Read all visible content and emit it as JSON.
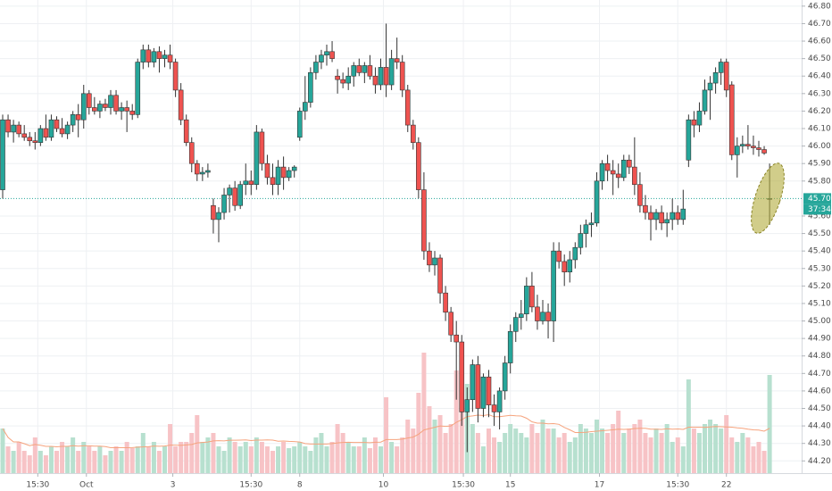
{
  "chart_data": {
    "type": "candlestick",
    "open": [
      45.75,
      46.15,
      46.08,
      46.12,
      46.07,
      46.05,
      46.03,
      46.02,
      46.1,
      46.05,
      46.15,
      46.1,
      46.07,
      46.12,
      46.18,
      46.15,
      46.3,
      46.22,
      46.2,
      46.24,
      46.22,
      46.29,
      46.2,
      46.22,
      46.2,
      46.18,
      46.48,
      46.55,
      46.48,
      46.54,
      46.5,
      46.52,
      46.48,
      46.32,
      46.15,
      46.02,
      45.9,
      45.84,
      45.85,
      45.66,
      45.58,
      45.62,
      45.72,
      45.76,
      45.66,
      45.78,
      45.8,
      45.78,
      46.08,
      45.9,
      45.82,
      45.78,
      45.88,
      45.82,
      45.86,
      46.05,
      46.2,
      46.25,
      46.42,
      46.48,
      46.52,
      46.54,
      46.4,
      46.38,
      46.36,
      46.4,
      46.46,
      46.42,
      46.46,
      46.4,
      46.35,
      46.45,
      46.35,
      46.5,
      46.48,
      46.32,
      46.12,
      46.02,
      45.75,
      45.4,
      45.32,
      45.36,
      45.16,
      45.05,
      44.92,
      44.88,
      44.48,
      44.55,
      44.75,
      44.5,
      44.68,
      44.52,
      44.48,
      44.6,
      44.76,
      44.94,
      45.02,
      45.04,
      45.2,
      45.08,
      45.0,
      45.05,
      45.0,
      45.4,
      45.34,
      45.28,
      45.35,
      45.42,
      45.5,
      45.55,
      45.56,
      45.8,
      45.9,
      45.86,
      45.84,
      45.82,
      45.92,
      45.88,
      45.78,
      45.66,
      45.62,
      45.58,
      45.62,
      45.56,
      45.58,
      45.62,
      45.58,
      45.92,
      46.15,
      46.12,
      46.2,
      46.32,
      46.36,
      46.42,
      46.48,
      46.35,
      45.95,
      46.0,
      46.01,
      46.0,
      45.99,
      45.98,
      45.7
    ],
    "high": [
      46.18,
      46.18,
      46.15,
      46.14,
      46.12,
      46.08,
      46.08,
      46.12,
      46.18,
      46.18,
      46.17,
      46.16,
      46.14,
      46.2,
      46.24,
      46.35,
      46.32,
      46.28,
      46.26,
      46.27,
      46.32,
      46.32,
      46.25,
      46.26,
      46.24,
      46.5,
      46.58,
      46.58,
      46.56,
      46.57,
      46.55,
      46.58,
      46.5,
      46.36,
      46.18,
      46.05,
      45.92,
      45.88,
      45.9,
      45.7,
      45.65,
      45.76,
      45.78,
      45.8,
      45.8,
      45.9,
      45.86,
      46.12,
      46.1,
      45.95,
      45.9,
      45.92,
      45.94,
      45.88,
      45.89,
      46.22,
      46.4,
      46.45,
      46.52,
      46.55,
      46.58,
      46.6,
      46.44,
      46.42,
      46.45,
      46.48,
      46.5,
      46.48,
      46.52,
      46.45,
      46.5,
      46.7,
      46.55,
      46.62,
      46.52,
      46.35,
      46.15,
      46.05,
      45.85,
      45.45,
      45.4,
      45.38,
      45.2,
      45.08,
      45.0,
      44.92,
      44.62,
      44.78,
      44.8,
      44.7,
      44.72,
      44.58,
      44.62,
      44.8,
      44.98,
      45.05,
      45.12,
      45.25,
      45.28,
      45.15,
      45.12,
      45.1,
      45.45,
      45.45,
      45.38,
      45.4,
      45.45,
      45.55,
      45.58,
      45.62,
      45.85,
      45.92,
      45.95,
      45.92,
      45.9,
      45.95,
      45.95,
      46.05,
      45.85,
      45.72,
      45.66,
      45.64,
      45.66,
      45.62,
      45.7,
      45.66,
      45.75,
      46.18,
      46.2,
      46.25,
      46.38,
      46.4,
      46.45,
      46.5,
      46.5,
      46.37,
      46.05,
      46.06,
      46.12,
      46.06,
      46.03,
      46.0,
      45.9
    ],
    "low": [
      45.7,
      46.05,
      46.02,
      46.05,
      46.03,
      46.0,
      45.98,
      46.0,
      46.03,
      46.03,
      46.08,
      46.05,
      46.04,
      46.08,
      46.05,
      46.1,
      46.18,
      46.18,
      46.16,
      46.2,
      46.18,
      46.18,
      46.15,
      46.08,
      46.15,
      46.16,
      46.44,
      46.45,
      46.45,
      46.42,
      46.45,
      46.44,
      46.28,
      46.12,
      46.0,
      45.85,
      45.8,
      45.8,
      45.82,
      45.5,
      45.45,
      45.58,
      45.62,
      45.63,
      45.64,
      45.72,
      45.72,
      45.75,
      45.86,
      45.78,
      45.72,
      45.72,
      45.75,
      45.8,
      45.82,
      46.03,
      46.15,
      46.22,
      46.38,
      46.44,
      46.46,
      46.48,
      46.3,
      46.33,
      46.32,
      46.34,
      46.4,
      46.36,
      46.38,
      46.3,
      46.32,
      46.28,
      46.32,
      46.44,
      46.28,
      46.08,
      45.98,
      45.7,
      45.35,
      45.28,
      45.26,
      45.1,
      45.0,
      44.88,
      44.55,
      44.4,
      44.25,
      44.48,
      44.42,
      44.45,
      44.45,
      44.4,
      44.38,
      44.55,
      44.7,
      44.88,
      44.95,
      45.0,
      45.05,
      44.95,
      44.98,
      44.9,
      44.88,
      45.3,
      45.2,
      45.22,
      45.3,
      45.38,
      45.42,
      45.48,
      45.54,
      45.75,
      45.8,
      45.72,
      45.76,
      45.8,
      45.84,
      45.72,
      45.62,
      45.58,
      45.46,
      45.52,
      45.52,
      45.48,
      45.52,
      45.55,
      45.55,
      45.88,
      46.05,
      46.08,
      46.18,
      46.15,
      46.3,
      46.35,
      46.28,
      45.92,
      45.82,
      45.96,
      45.98,
      45.95,
      45.94,
      45.95,
      45.55
    ],
    "close": [
      46.15,
      46.08,
      46.12,
      46.07,
      46.05,
      46.03,
      46.02,
      46.1,
      46.05,
      46.15,
      46.1,
      46.07,
      46.12,
      46.18,
      46.15,
      46.3,
      46.22,
      46.2,
      46.24,
      46.22,
      46.29,
      46.2,
      46.22,
      46.2,
      46.18,
      46.48,
      46.55,
      46.48,
      46.54,
      46.5,
      46.52,
      46.48,
      46.32,
      46.15,
      46.02,
      45.9,
      45.84,
      45.85,
      45.86,
      45.58,
      45.62,
      45.72,
      45.76,
      45.66,
      45.78,
      45.8,
      45.78,
      46.08,
      45.9,
      45.82,
      45.78,
      45.88,
      45.82,
      45.86,
      45.88,
      46.2,
      46.25,
      46.42,
      46.48,
      46.52,
      46.54,
      46.5,
      46.38,
      46.36,
      46.4,
      46.46,
      46.42,
      46.46,
      46.4,
      46.35,
      46.45,
      46.35,
      46.5,
      46.48,
      46.32,
      46.12,
      46.02,
      45.75,
      45.4,
      45.32,
      45.36,
      45.16,
      45.05,
      44.92,
      44.88,
      44.48,
      44.55,
      44.75,
      44.5,
      44.68,
      44.52,
      44.48,
      44.6,
      44.76,
      44.94,
      45.02,
      45.04,
      45.2,
      45.08,
      45.0,
      45.05,
      45.0,
      45.4,
      45.34,
      45.28,
      45.35,
      45.42,
      45.5,
      45.55,
      45.56,
      45.8,
      45.9,
      45.86,
      45.84,
      45.82,
      45.92,
      45.88,
      45.78,
      45.66,
      45.62,
      45.58,
      45.62,
      45.56,
      45.58,
      45.62,
      45.58,
      45.64,
      46.15,
      46.12,
      46.2,
      46.32,
      46.36,
      46.42,
      46.48,
      46.32,
      45.95,
      46.0,
      46.01,
      46.0,
      45.99,
      45.98,
      45.96,
      45.7
    ],
    "volume": [
      50,
      30,
      25,
      35,
      25,
      20,
      40,
      25,
      20,
      30,
      25,
      35,
      30,
      40,
      25,
      35,
      30,
      25,
      30,
      20,
      25,
      30,
      25,
      35,
      28,
      30,
      45,
      30,
      35,
      25,
      30,
      55,
      30,
      35,
      35,
      45,
      65,
      35,
      40,
      45,
      30,
      25,
      40,
      35,
      30,
      35,
      30,
      40,
      35,
      30,
      25,
      30,
      35,
      28,
      30,
      35,
      30,
      25,
      40,
      45,
      30,
      35,
      55,
      45,
      35,
      30,
      30,
      40,
      28,
      40,
      30,
      85,
      35,
      30,
      40,
      60,
      50,
      90,
      135,
      75,
      60,
      65,
      45,
      55,
      115,
      90,
      100,
      55,
      45,
      30,
      50,
      40,
      35,
      45,
      55,
      50,
      45,
      40,
      55,
      45,
      60,
      50,
      50,
      40,
      45,
      35,
      40,
      55,
      50,
      45,
      60,
      50,
      45,
      55,
      70,
      45,
      50,
      55,
      60,
      45,
      40,
      50,
      45,
      55,
      35,
      40,
      30,
      105,
      50,
      45,
      55,
      60,
      55,
      50,
      65,
      40,
      35,
      45,
      40,
      30,
      35,
      25,
      110
    ],
    "ma_period": 20,
    "vlim": [
      0,
      530
    ],
    "ylim": [
      44.13,
      46.835
    ],
    "yticks": [
      {
        "value": 46.8,
        "label": "46.80"
      },
      {
        "value": 46.7,
        "label": "46.70"
      },
      {
        "value": 46.6,
        "label": "46.60"
      },
      {
        "value": 46.5,
        "label": "46.50"
      },
      {
        "value": 46.4,
        "label": "46.40"
      },
      {
        "value": 46.3,
        "label": "46.30"
      },
      {
        "value": 46.2,
        "label": "46.20"
      },
      {
        "value": 46.1,
        "label": "46.10"
      },
      {
        "value": 46.0,
        "label": "46.00"
      },
      {
        "value": 45.9,
        "label": "45.90"
      },
      {
        "value": 45.8,
        "label": "45.80"
      },
      {
        "value": 45.6,
        "label": "45.60"
      },
      {
        "value": 45.5,
        "label": "45.50"
      },
      {
        "value": 45.4,
        "label": "45.40"
      },
      {
        "value": 45.3,
        "label": "45.30"
      },
      {
        "value": 45.2,
        "label": "45.20"
      },
      {
        "value": 45.1,
        "label": "45.10"
      },
      {
        "value": 45.0,
        "label": "45.00"
      },
      {
        "value": 44.9,
        "label": "44.90"
      },
      {
        "value": 44.8,
        "label": "44.80"
      },
      {
        "value": 44.7,
        "label": "44.70"
      },
      {
        "value": 44.6,
        "label": "44.60"
      },
      {
        "value": 44.5,
        "label": "44.50"
      },
      {
        "value": 44.4,
        "label": "44.40"
      },
      {
        "value": 44.3,
        "label": "44.30"
      },
      {
        "value": 44.2,
        "label": "44.20"
      }
    ],
    "xticks": [
      {
        "value": 6.5,
        "label": "15:30"
      },
      {
        "value": 15.5,
        "label": "Oct"
      },
      {
        "value": 31.5,
        "label": "3"
      },
      {
        "value": 46,
        "label": "15:30"
      },
      {
        "value": 55,
        "label": "8"
      },
      {
        "value": 70.5,
        "label": "10"
      },
      {
        "value": 85.3,
        "label": "15:30"
      },
      {
        "value": 94,
        "label": "15"
      },
      {
        "value": 110.5,
        "label": "17"
      },
      {
        "value": 125,
        "label": "15:30"
      },
      {
        "value": 134,
        "label": "22"
      }
    ],
    "last_price": {
      "value": 45.7,
      "label": "45.70"
    },
    "countdown": "37:34",
    "up_color": "#26a69a",
    "down_color": "#ef5350",
    "up_volume_color": "#b7e0cf",
    "down_volume_color": "#f7c3c6",
    "ma_color": "#f6a37d",
    "grid": true
  }
}
